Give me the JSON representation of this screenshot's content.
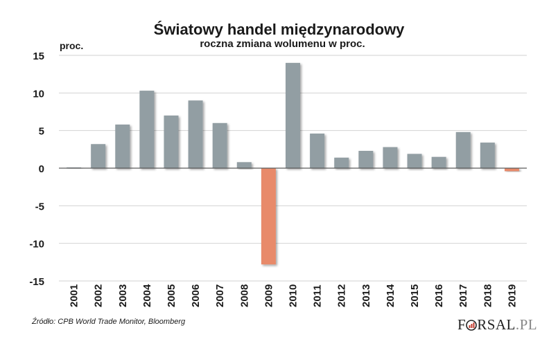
{
  "title": "Światowy handel międzynarodowy",
  "subtitle": "roczna zmiana wolumenu w proc.",
  "ylabel": "proc.",
  "source": "Źródło: CPB World Trade Monitor, Bloomberg",
  "logo": {
    "pre": "F",
    "post": "RSAL",
    "suffix": ".PL"
  },
  "colors": {
    "positive": "#929ea3",
    "negative": "#e88a6a",
    "grid": "#d2d2d2",
    "axis": "#5a5a5a",
    "text": "#1a1a1a"
  },
  "chart_data": {
    "type": "bar",
    "title": "Światowy handel międzynarodowy",
    "subtitle": "roczna zmiana wolumenu w proc.",
    "xlabel": "",
    "ylabel": "proc.",
    "ylim": [
      -15,
      15
    ],
    "yticks": [
      15,
      10,
      5,
      0,
      -5,
      -10,
      -15
    ],
    "grid": true,
    "categories": [
      "2001",
      "2002",
      "2003",
      "2004",
      "2005",
      "2006",
      "2007",
      "2008",
      "2009",
      "2010",
      "2011",
      "2012",
      "2013",
      "2014",
      "2015",
      "2016",
      "2017",
      "2018",
      "2019"
    ],
    "values": [
      0.1,
      3.2,
      5.8,
      10.3,
      7.0,
      9.0,
      6.0,
      0.8,
      -12.8,
      14.0,
      4.6,
      1.4,
      2.3,
      2.8,
      1.9,
      1.5,
      4.8,
      3.4,
      -0.4
    ]
  }
}
